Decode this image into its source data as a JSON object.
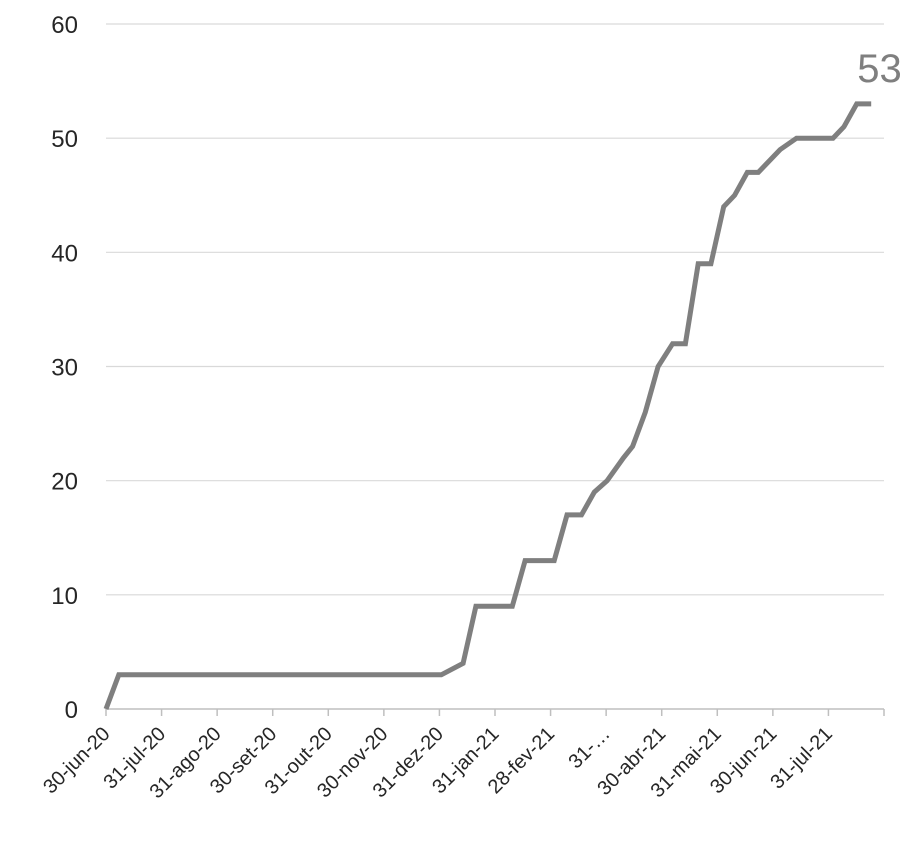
{
  "chart_data": {
    "type": "line",
    "title": "",
    "xlabel": "",
    "ylabel": "",
    "ylim": [
      0,
      60
    ],
    "y_ticks": [
      0,
      10,
      20,
      30,
      40,
      50,
      60
    ],
    "grid": true,
    "x_tick_labels": [
      "30-jun-20",
      "31-jul-20",
      "31-ago-20",
      "30-set-20",
      "31-out-20",
      "30-nov-20",
      "31-dez-20",
      "31-jan-21",
      "28-fev-21",
      "31-…",
      "30-abr-21",
      "31-mai-21",
      "30-jun-21",
      "31-jul-21"
    ],
    "end_label": "53",
    "series": [
      {
        "color": "#7f7f7f",
        "points": [
          [
            "2020-06-30",
            0
          ],
          [
            "2020-07-07",
            3
          ],
          [
            "2020-12-31",
            3
          ],
          [
            "2021-01-12",
            4
          ],
          [
            "2021-01-19",
            9
          ],
          [
            "2021-02-08",
            9
          ],
          [
            "2021-02-15",
            13
          ],
          [
            "2021-03-03",
            13
          ],
          [
            "2021-03-10",
            17
          ],
          [
            "2021-03-18",
            17
          ],
          [
            "2021-03-25",
            19
          ],
          [
            "2021-04-01",
            20
          ],
          [
            "2021-04-10",
            22
          ],
          [
            "2021-04-15",
            23
          ],
          [
            "2021-04-22",
            26
          ],
          [
            "2021-04-29",
            30
          ],
          [
            "2021-05-07",
            32
          ],
          [
            "2021-05-14",
            32
          ],
          [
            "2021-05-21",
            39
          ],
          [
            "2021-05-28",
            39
          ],
          [
            "2021-06-04",
            44
          ],
          [
            "2021-06-10",
            45
          ],
          [
            "2021-06-17",
            47
          ],
          [
            "2021-06-23",
            47
          ],
          [
            "2021-07-05",
            49
          ],
          [
            "2021-07-14",
            50
          ],
          [
            "2021-08-03",
            50
          ],
          [
            "2021-08-09",
            51
          ],
          [
            "2021-08-16",
            53
          ],
          [
            "2021-08-24",
            53
          ]
        ]
      }
    ]
  }
}
